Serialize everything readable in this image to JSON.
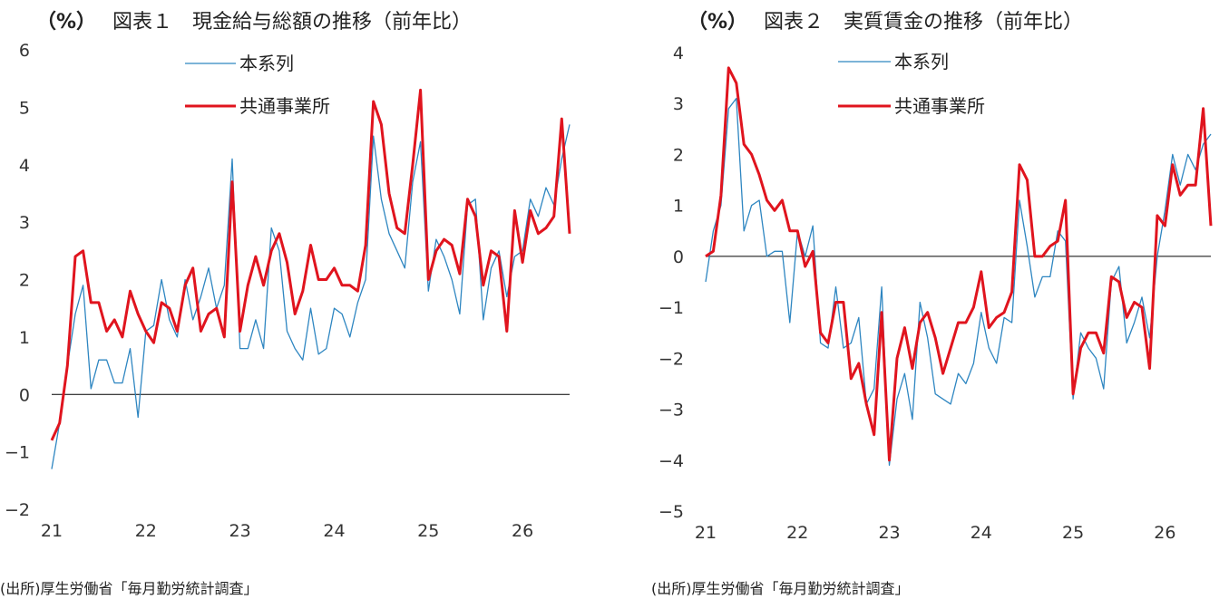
{
  "chart_data": [
    {
      "type": "line",
      "unit_label": "（%）",
      "title": "図表１　現金給与総額の推移（前年比）",
      "source": "(出所)厚生労働省「毎月勤労統計調査」",
      "x_tick_labels": [
        "21",
        "22",
        "23",
        "24",
        "25",
        "26"
      ],
      "ylim": [
        -2,
        6
      ],
      "y_ticks": [
        6,
        5,
        4,
        3,
        2,
        1,
        0,
        -1,
        -2
      ],
      "y_tick_labels": [
        "6",
        "5",
        "4",
        "3",
        "2",
        "1",
        "0",
        "−1",
        "−2"
      ],
      "grid": false,
      "legend_position": "top-center",
      "series": [
        {
          "name": "本系列",
          "color": "#2e86c1",
          "values": [
            -1.3,
            -0.5,
            0.5,
            1.4,
            1.9,
            0.1,
            0.6,
            0.6,
            0.2,
            0.2,
            0.8,
            -0.4,
            1.1,
            1.2,
            2.0,
            1.3,
            1.0,
            2.0,
            1.3,
            1.7,
            2.2,
            1.5,
            1.9,
            4.1,
            0.8,
            0.8,
            1.3,
            0.8,
            2.9,
            2.5,
            1.1,
            0.8,
            0.6,
            1.5,
            0.7,
            0.8,
            1.5,
            1.4,
            1.0,
            1.6,
            2.0,
            4.5,
            3.4,
            2.8,
            2.5,
            2.2,
            3.7,
            4.4,
            1.8,
            2.7,
            2.4,
            2.0,
            1.4,
            3.3,
            3.4,
            1.3,
            2.2,
            2.5,
            1.7,
            2.4,
            2.5,
            3.4,
            3.1,
            3.6,
            3.3,
            4.1,
            4.7
          ]
        },
        {
          "name": "共通事業所",
          "color": "#e0141e",
          "values": [
            -0.8,
            -0.5,
            0.5,
            2.4,
            2.5,
            1.6,
            1.6,
            1.1,
            1.3,
            1.0,
            1.8,
            1.4,
            1.1,
            0.9,
            1.6,
            1.5,
            1.1,
            1.9,
            2.2,
            1.1,
            1.4,
            1.5,
            1.0,
            3.7,
            1.1,
            1.9,
            2.4,
            1.9,
            2.5,
            2.8,
            2.3,
            1.4,
            1.8,
            2.6,
            2.0,
            2.0,
            2.2,
            1.9,
            1.9,
            1.8,
            2.6,
            5.1,
            4.7,
            3.5,
            2.9,
            2.8,
            4.0,
            5.3,
            2.0,
            2.5,
            2.7,
            2.6,
            2.1,
            3.4,
            3.1,
            1.9,
            2.5,
            2.4,
            1.1,
            3.2,
            2.3,
            3.2,
            2.8,
            2.9,
            3.1,
            4.8,
            2.8
          ]
        }
      ]
    },
    {
      "type": "line",
      "unit_label": "（%）",
      "title": "図表２　実質賃金の推移（前年比）",
      "source": "(出所)厚生労働省「毎月勤労統計調査」",
      "x_tick_labels": [
        "21",
        "22",
        "23",
        "24",
        "25",
        "26"
      ],
      "ylim": [
        -5,
        4
      ],
      "y_ticks": [
        4,
        3,
        2,
        1,
        0,
        -1,
        -2,
        -3,
        -4,
        -5
      ],
      "y_tick_labels": [
        "4",
        "3",
        "2",
        "1",
        "0",
        "−1",
        "−2",
        "−3",
        "−4",
        "−5"
      ],
      "grid": false,
      "legend_position": "top-center",
      "series": [
        {
          "name": "本系列",
          "color": "#2e86c1",
          "values": [
            -0.5,
            0.5,
            1.0,
            2.9,
            3.1,
            0.5,
            1.0,
            1.1,
            0.0,
            0.1,
            0.1,
            -1.3,
            0.5,
            0.0,
            0.6,
            -1.7,
            -1.8,
            -0.6,
            -1.8,
            -1.7,
            -1.2,
            -2.9,
            -2.6,
            -0.6,
            -4.1,
            -2.8,
            -2.3,
            -3.2,
            -0.9,
            -1.6,
            -2.7,
            -2.8,
            -2.9,
            -2.3,
            -2.5,
            -2.1,
            -1.1,
            -1.8,
            -2.1,
            -1.2,
            -1.3,
            1.1,
            0.2,
            -0.8,
            -0.4,
            -0.4,
            0.5,
            0.3,
            -2.8,
            -1.5,
            -1.8,
            -2.0,
            -2.6,
            -0.5,
            -0.2,
            -1.7,
            -1.3,
            -0.8,
            -1.6,
            0.0,
            0.9,
            2.0,
            1.4,
            2.0,
            1.7,
            2.2,
            2.4
          ]
        },
        {
          "name": "共通事業所",
          "color": "#e0141e",
          "values": [
            0.0,
            0.1,
            1.2,
            3.7,
            3.4,
            2.2,
            2.0,
            1.6,
            1.1,
            0.9,
            1.1,
            0.5,
            0.5,
            -0.2,
            0.1,
            -1.5,
            -1.7,
            -0.9,
            -0.9,
            -2.4,
            -2.1,
            -2.9,
            -3.5,
            -1.1,
            -4.0,
            -2.0,
            -1.4,
            -2.2,
            -1.3,
            -1.1,
            -1.6,
            -2.3,
            -1.8,
            -1.3,
            -1.3,
            -1.0,
            -0.3,
            -1.4,
            -1.2,
            -1.1,
            -0.7,
            1.8,
            1.5,
            0.0,
            0.0,
            0.2,
            0.3,
            1.1,
            -2.7,
            -1.8,
            -1.5,
            -1.5,
            -1.9,
            -0.4,
            -0.5,
            -1.2,
            -0.9,
            -1.0,
            -2.2,
            0.8,
            0.6,
            1.8,
            1.2,
            1.4,
            1.4,
            2.9,
            0.6
          ]
        }
      ]
    }
  ]
}
